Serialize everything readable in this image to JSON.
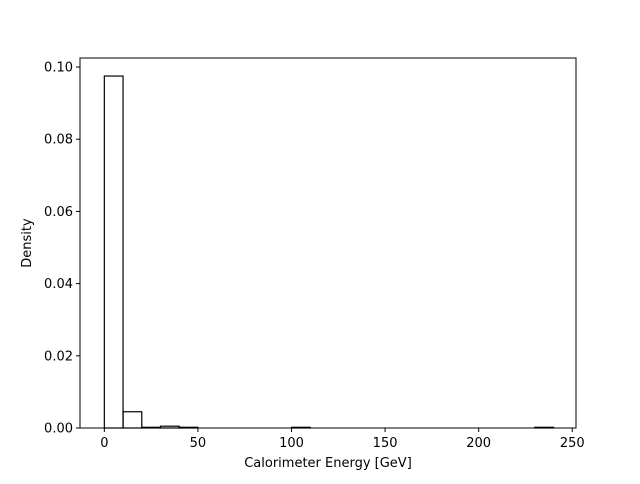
{
  "chart_data": {
    "type": "bar",
    "style": "step-histogram",
    "xlabel": "Calorimeter Energy [GeV]",
    "ylabel": "Density",
    "xlim": [
      -13,
      252
    ],
    "ylim": [
      0,
      0.1025
    ],
    "grid": false,
    "bin_width": 10,
    "bins": [
      {
        "start": 0,
        "end": 10,
        "value": 0.0975
      },
      {
        "start": 10,
        "end": 20,
        "value": 0.0045
      },
      {
        "start": 20,
        "end": 30,
        "value": 0.0002
      },
      {
        "start": 30,
        "end": 40,
        "value": 0.0005
      },
      {
        "start": 40,
        "end": 50,
        "value": 0.0002
      },
      {
        "start": 50,
        "end": 60,
        "value": 0.0
      },
      {
        "start": 60,
        "end": 70,
        "value": 0.0
      },
      {
        "start": 70,
        "end": 80,
        "value": 0.0
      },
      {
        "start": 80,
        "end": 90,
        "value": 0.0
      },
      {
        "start": 90,
        "end": 100,
        "value": 0.0
      },
      {
        "start": 100,
        "end": 110,
        "value": 0.0002
      },
      {
        "start": 110,
        "end": 120,
        "value": 0.0
      },
      {
        "start": 120,
        "end": 130,
        "value": 0.0
      },
      {
        "start": 130,
        "end": 140,
        "value": 0.0
      },
      {
        "start": 140,
        "end": 150,
        "value": 0.0
      },
      {
        "start": 150,
        "end": 160,
        "value": 0.0
      },
      {
        "start": 160,
        "end": 170,
        "value": 0.0
      },
      {
        "start": 170,
        "end": 180,
        "value": 0.0
      },
      {
        "start": 180,
        "end": 190,
        "value": 0.0
      },
      {
        "start": 190,
        "end": 200,
        "value": 0.0
      },
      {
        "start": 200,
        "end": 210,
        "value": 0.0
      },
      {
        "start": 210,
        "end": 220,
        "value": 0.0
      },
      {
        "start": 220,
        "end": 230,
        "value": 0.0
      },
      {
        "start": 230,
        "end": 240,
        "value": 0.0002
      }
    ],
    "x_ticks": [
      {
        "value": 0,
        "label": "0"
      },
      {
        "value": 50,
        "label": "50"
      },
      {
        "value": 100,
        "label": "100"
      },
      {
        "value": 150,
        "label": "150"
      },
      {
        "value": 200,
        "label": "200"
      },
      {
        "value": 250,
        "label": "250"
      }
    ],
    "y_ticks": [
      {
        "value": 0.0,
        "label": "0.00"
      },
      {
        "value": 0.02,
        "label": "0.02"
      },
      {
        "value": 0.04,
        "label": "0.04"
      },
      {
        "value": 0.06,
        "label": "0.06"
      },
      {
        "value": 0.08,
        "label": "0.08"
      },
      {
        "value": 0.1,
        "label": "0.10"
      }
    ],
    "colors": {
      "line": "#000000",
      "background": "#ffffff"
    }
  }
}
